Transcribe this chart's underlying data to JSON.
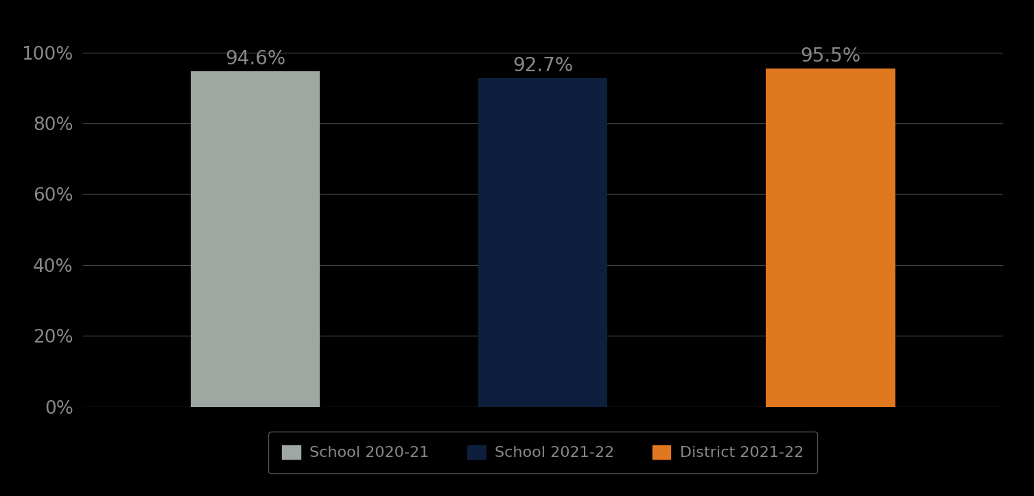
{
  "categories": [
    "School 2020-21",
    "School 2021-22",
    "District 2021-22"
  ],
  "values": [
    0.946,
    0.927,
    0.955
  ],
  "labels": [
    "94.6%",
    "92.7%",
    "95.5%"
  ],
  "bar_colors": [
    "#9EA7A2",
    "#0D1F3C",
    "#E07820"
  ],
  "background_color": "#000000",
  "text_color": "#888888",
  "label_color": "#888888",
  "ylim": [
    0,
    1.05
  ],
  "yticks": [
    0.0,
    0.2,
    0.4,
    0.6,
    0.8,
    1.0
  ],
  "ytick_labels": [
    "0%",
    "20%",
    "40%",
    "60%",
    "80%",
    "100%"
  ],
  "bar_width": 0.45,
  "x_positions": [
    1,
    2,
    3
  ],
  "xlim": [
    0.4,
    3.6
  ],
  "grid_color": "#444444",
  "legend_labels": [
    "School 2020-21",
    "School 2021-22",
    "District 2021-22"
  ],
  "legend_colors": [
    "#9EA7A2",
    "#0D1F3C",
    "#E07820"
  ],
  "value_fontsize": 20,
  "tick_fontsize": 19,
  "legend_fontsize": 16
}
